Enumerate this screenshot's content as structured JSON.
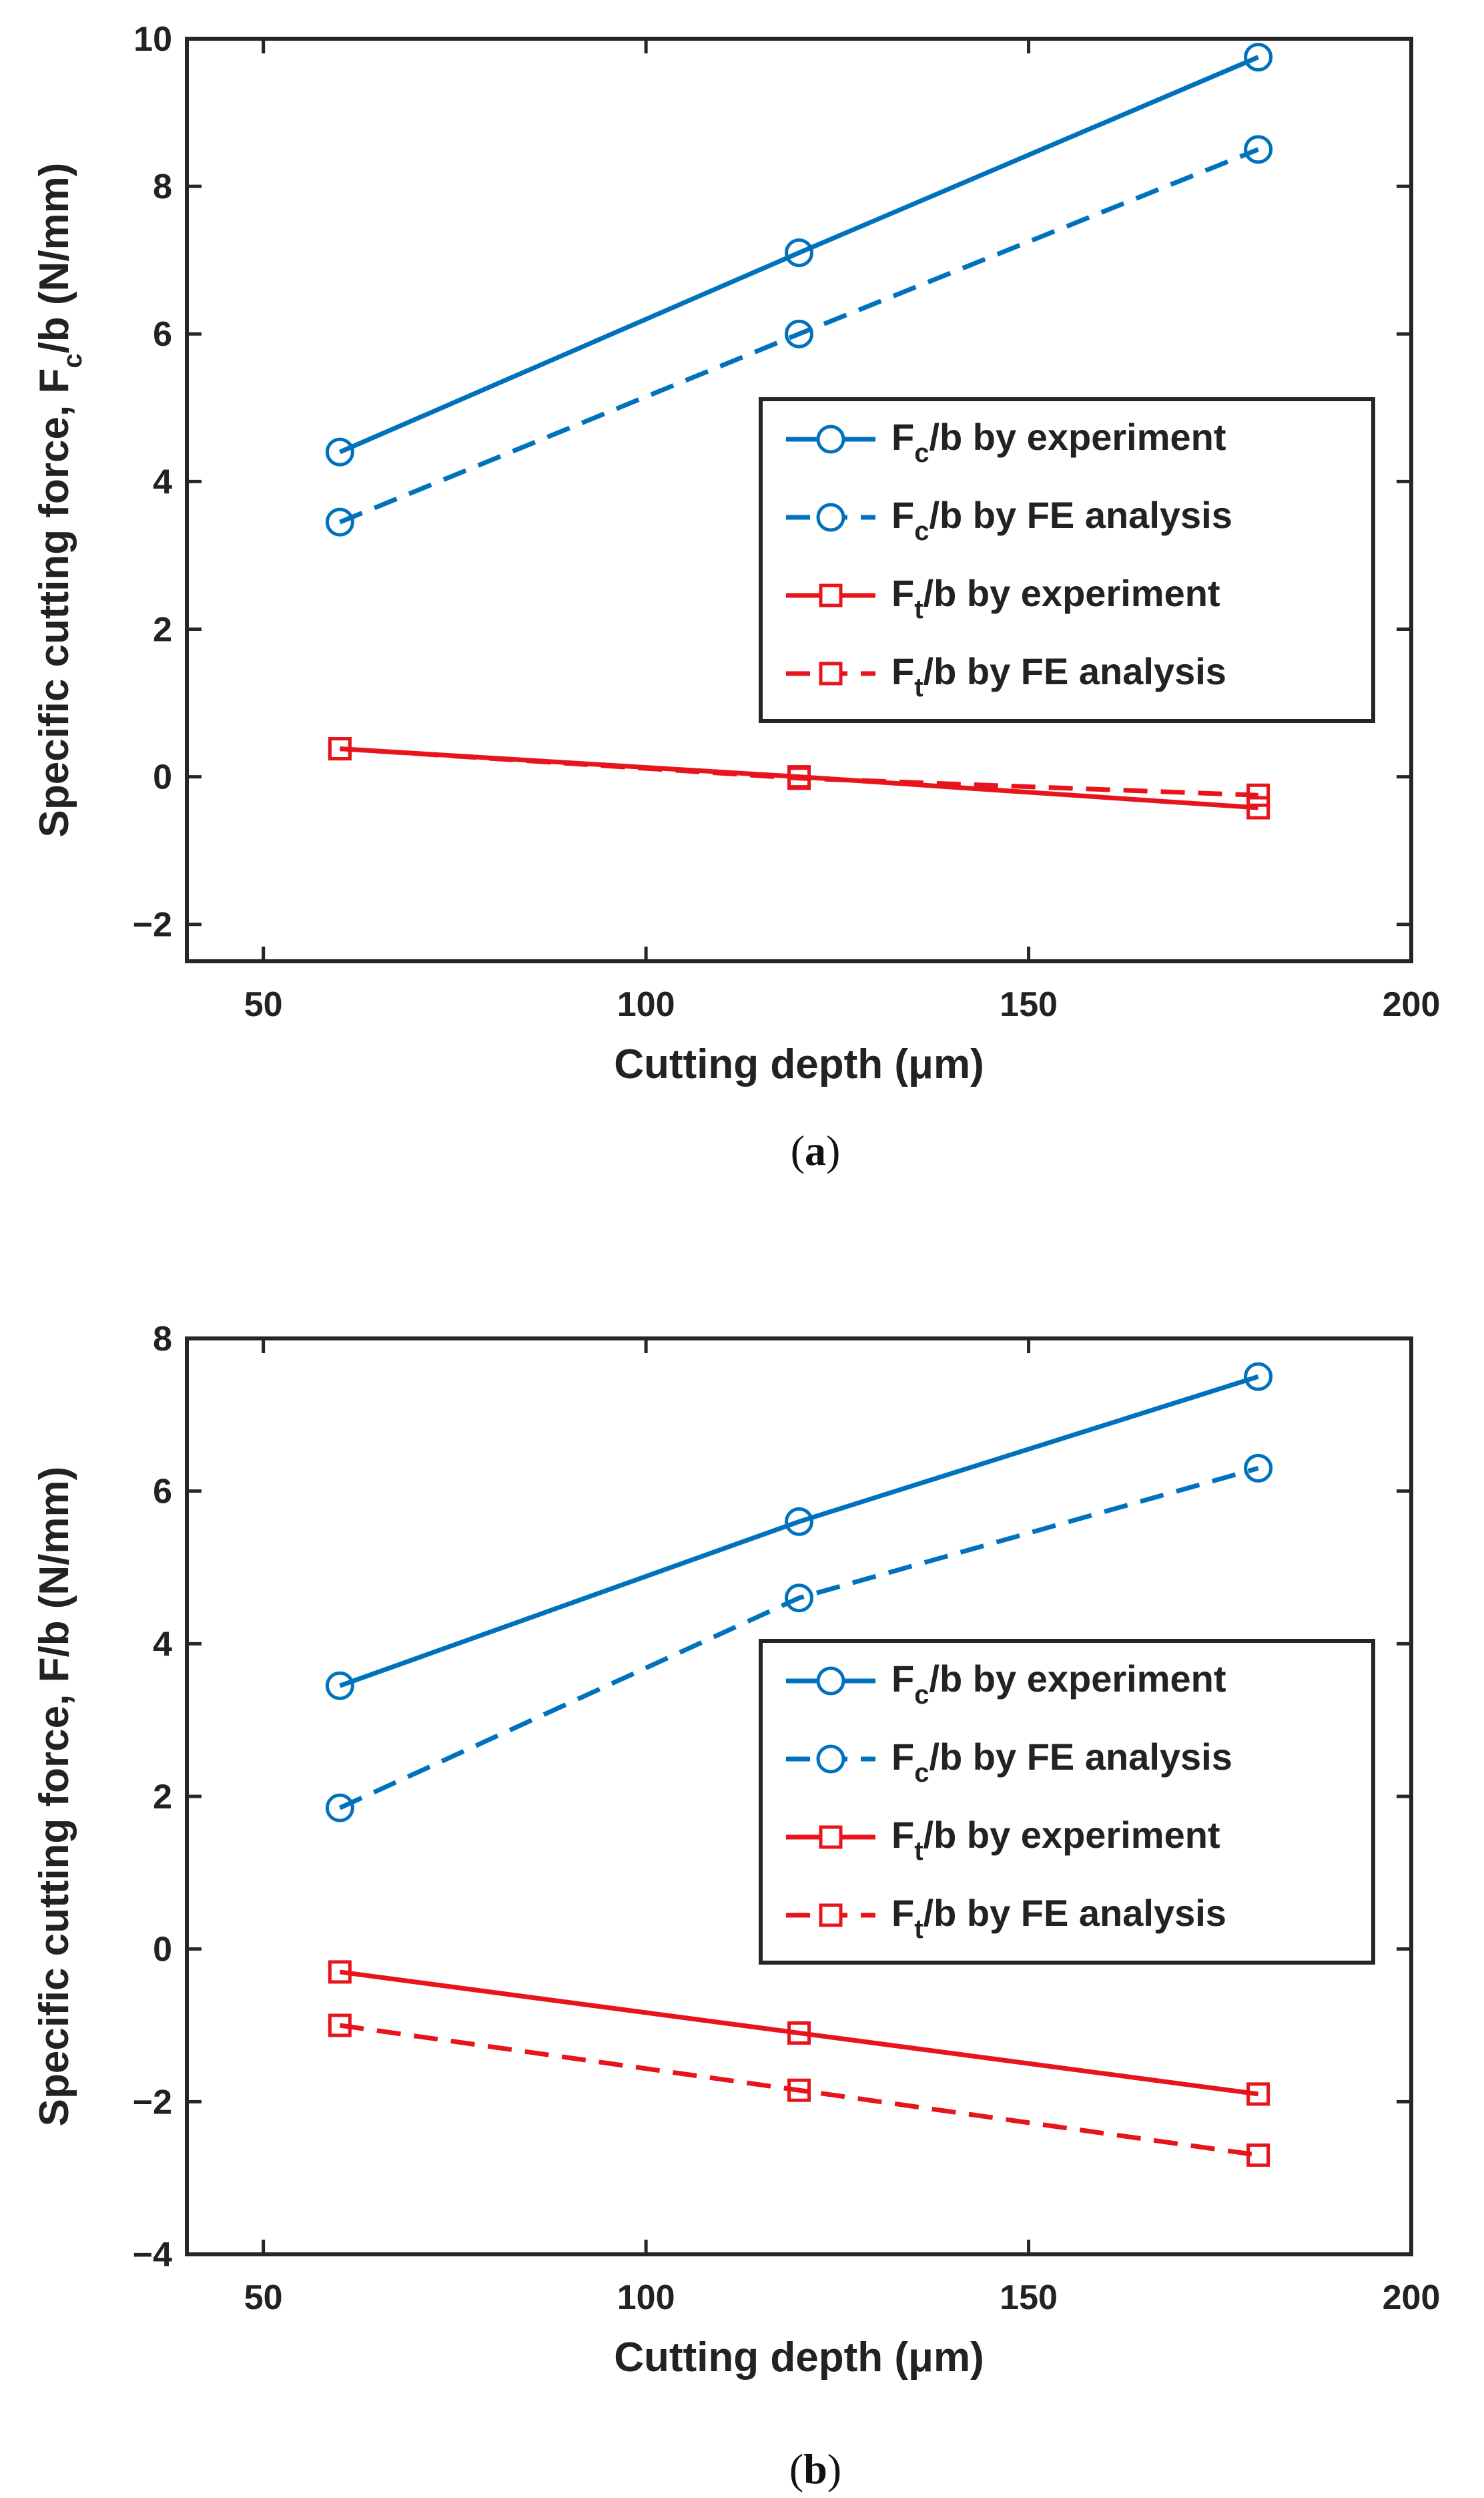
{
  "chart_data": [
    {
      "type": "line",
      "panel_label": "a",
      "title": "",
      "xlabel_main": "Cutting depth (",
      "xlabel_unit": "μ",
      "xlabel_tail": "m)",
      "ylabel_main": "Specific cutting force, F",
      "ylabel_sub": "c",
      "ylabel_tail": "/b (N/mm)",
      "xlim": [
        40,
        200
      ],
      "ylim": [
        -2.5,
        10
      ],
      "xticks": [
        50,
        100,
        150,
        200
      ],
      "yticks": [
        -2,
        0,
        2,
        4,
        6,
        8,
        10
      ],
      "legend_position": "center-right",
      "x": [
        60,
        120,
        180
      ],
      "series": [
        {
          "name_main": "F",
          "name_sub": "c",
          "name_tail": "/b by experiment",
          "values": [
            4.4,
            7.1,
            9.75
          ],
          "color": "#0072BD",
          "dash": "solid",
          "marker": "circle"
        },
        {
          "name_main": "F",
          "name_sub": "c",
          "name_tail": "/b by FE analysis",
          "values": [
            3.45,
            6.0,
            8.5
          ],
          "color": "#0072BD",
          "dash": "dashed",
          "marker": "circle"
        },
        {
          "name_main": "F",
          "name_sub": "t",
          "name_tail": "/b by experiment",
          "values": [
            0.38,
            0.0,
            -0.42
          ],
          "color": "#E8141B",
          "dash": "solid",
          "marker": "square"
        },
        {
          "name_main": "F",
          "name_sub": "t",
          "name_tail": "/b by FE analysis",
          "values": [
            0.38,
            -0.02,
            -0.25
          ],
          "color": "#E8141B",
          "dash": "dashed",
          "marker": "square"
        }
      ]
    },
    {
      "type": "line",
      "panel_label": "b",
      "title": "",
      "xlabel_main": "Cutting depth (",
      "xlabel_unit": "μ",
      "xlabel_tail": "m)",
      "ylabel_main": "Specific cutting force, F/b (N/mm)",
      "ylabel_sub": "",
      "ylabel_tail": "",
      "xlim": [
        40,
        200
      ],
      "ylim": [
        -4,
        8
      ],
      "xticks": [
        50,
        100,
        150,
        200
      ],
      "yticks": [
        -4,
        -2,
        0,
        2,
        4,
        6,
        8
      ],
      "legend_position": "center-right",
      "x": [
        60,
        120,
        180
      ],
      "series": [
        {
          "name_main": "F",
          "name_sub": "c",
          "name_tail": "/b by experiment",
          "values": [
            3.45,
            5.6,
            7.5
          ],
          "color": "#0072BD",
          "dash": "solid",
          "marker": "circle"
        },
        {
          "name_main": "F",
          "name_sub": "c",
          "name_tail": "/b by FE analysis",
          "values": [
            1.85,
            4.6,
            6.3
          ],
          "color": "#0072BD",
          "dash": "dashed",
          "marker": "circle"
        },
        {
          "name_main": "F",
          "name_sub": "t",
          "name_tail": "/b by experiment",
          "values": [
            -0.3,
            -1.1,
            -1.9
          ],
          "color": "#E8141B",
          "dash": "solid",
          "marker": "square"
        },
        {
          "name_main": "F",
          "name_sub": "t",
          "name_tail": "/b by FE analysis",
          "values": [
            -1.0,
            -1.85,
            -2.7
          ],
          "color": "#E8141B",
          "dash": "dashed",
          "marker": "square"
        }
      ]
    }
  ]
}
